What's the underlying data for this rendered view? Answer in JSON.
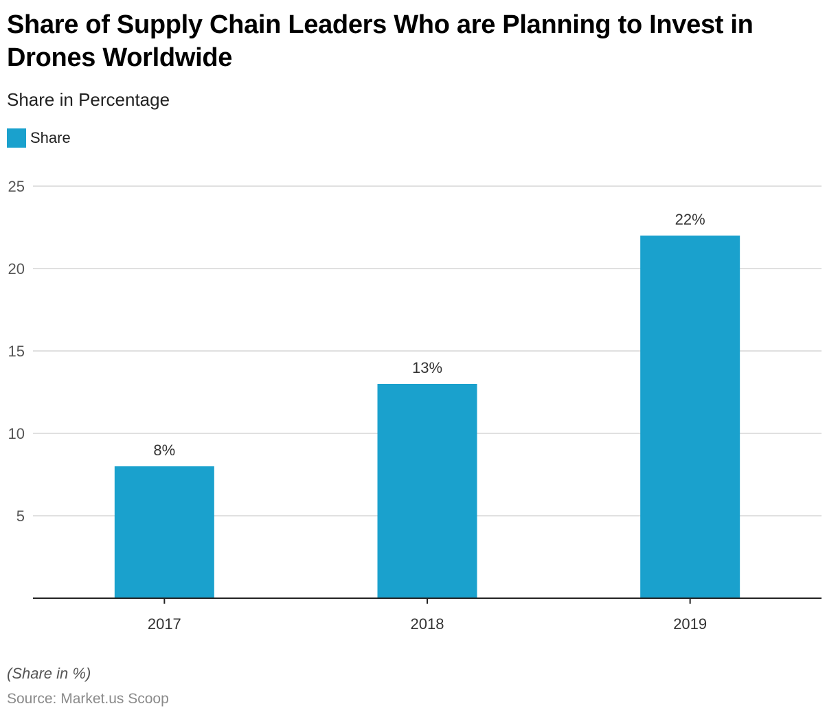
{
  "chart_data": {
    "type": "bar",
    "title": "Share of Supply Chain Leaders Who are Planning to Invest in Drones Worldwide",
    "subtitle": "Share in Percentage",
    "xlabel": "",
    "ylabel": "",
    "categories": [
      "2017",
      "2018",
      "2019"
    ],
    "series": [
      {
        "name": "Share",
        "values": [
          8,
          13,
          22
        ],
        "labels": [
          "8%",
          "13%",
          "22%"
        ],
        "color": "#1aa1cd"
      }
    ],
    "ylim": [
      0,
      25
    ],
    "yticks": [
      5,
      10,
      15,
      20,
      25
    ],
    "ytick_labels": [
      "5",
      "10",
      "15",
      "20",
      "25"
    ],
    "grid": true,
    "legend": {
      "placement": "top-left",
      "entries": [
        "Share"
      ]
    },
    "note": "(Share in %)",
    "source": "Source: Market.us Scoop"
  }
}
